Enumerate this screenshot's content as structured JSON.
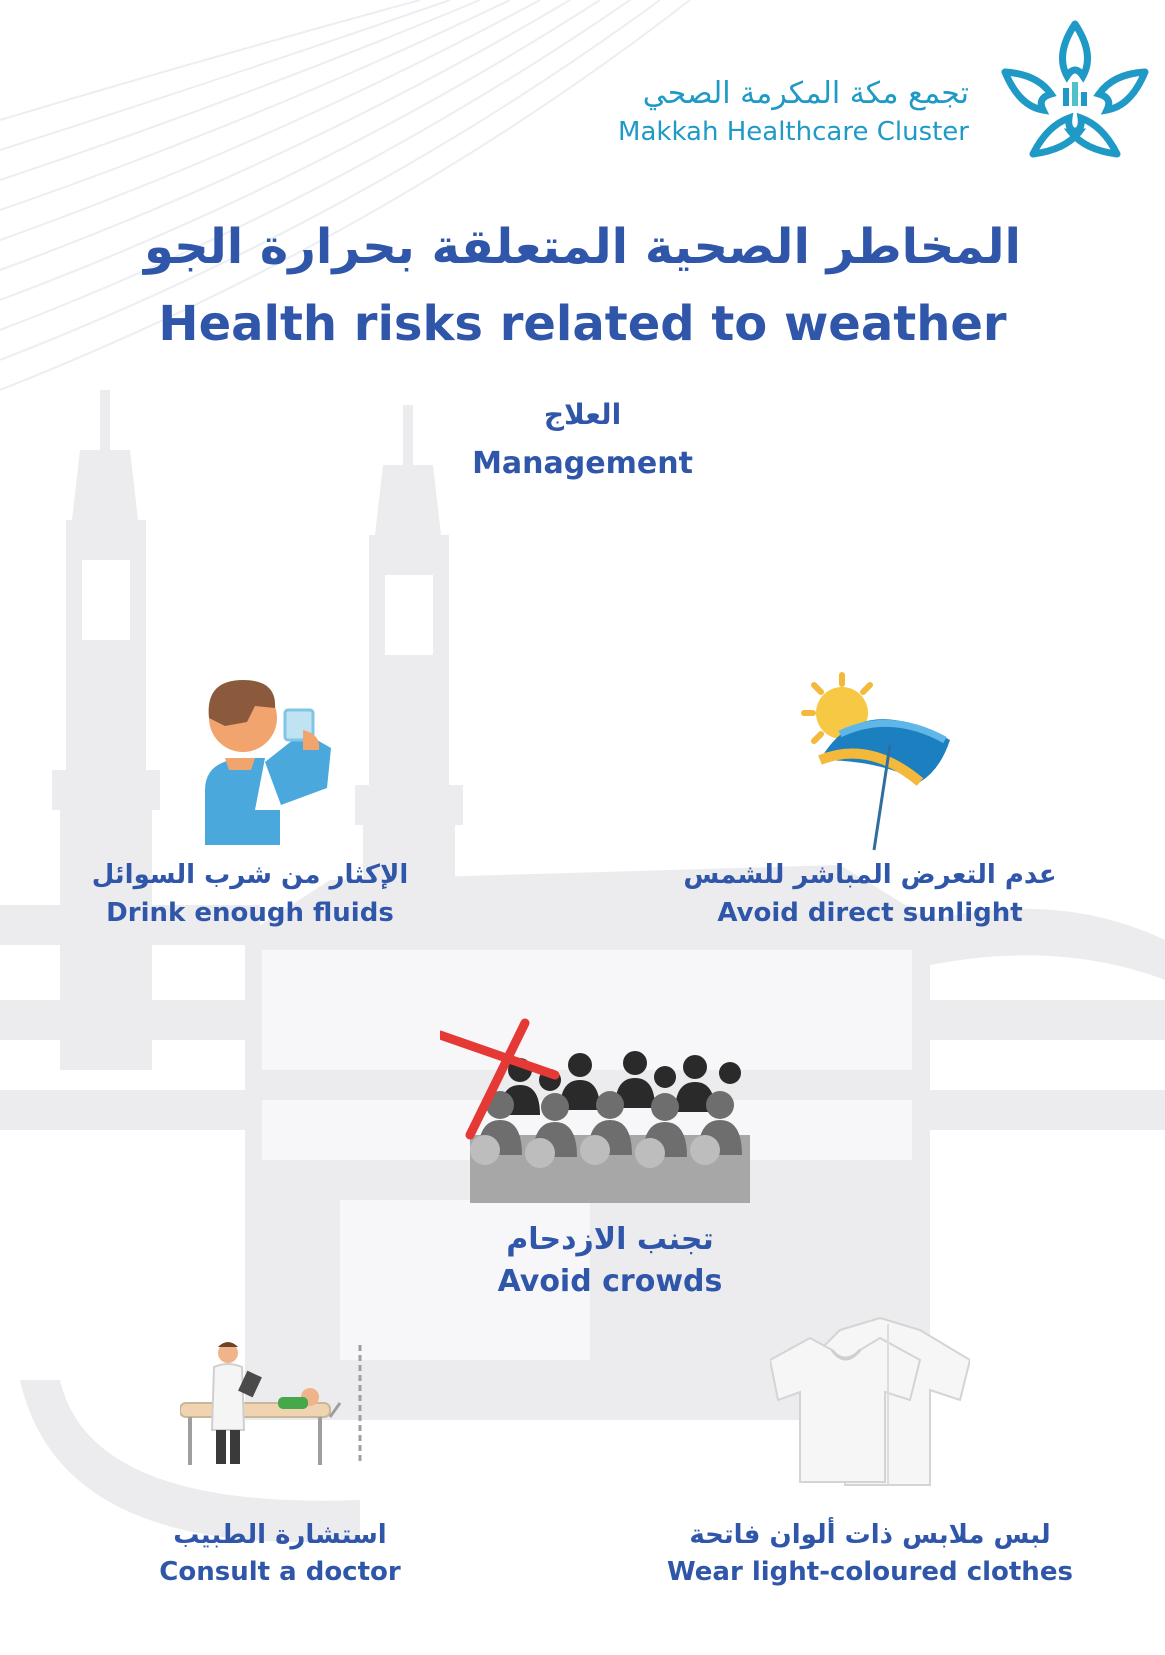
{
  "brand": {
    "name_ar": "تجمع مكة المكرمة الصحي",
    "name_en": "Makkah Healthcare Cluster"
  },
  "title": {
    "ar": "المخاطر الصحية المتعلقة بحرارة الجو",
    "en": "Health risks related to weather"
  },
  "section": {
    "ar": "العلاج",
    "en": "Management"
  },
  "items": [
    {
      "ar": "الإكثار من شرب السوائل",
      "en": "Drink enough fluids",
      "icon": "drinking-water-icon"
    },
    {
      "ar": "عدم التعرض المباشر للشمس",
      "en": "Avoid direct sunlight",
      "icon": "umbrella-sun-icon"
    },
    {
      "ar": "تجنب الازدحام",
      "en": "Avoid crowds",
      "icon": "crowd-crossed-icon"
    },
    {
      "ar": "استشارة الطبيب",
      "en": "Consult a doctor",
      "icon": "doctor-patient-icon"
    },
    {
      "ar": "لبس ملابس ذات ألوان فاتحة",
      "en": "Wear light-coloured clothes",
      "icon": "white-shirts-icon"
    }
  ],
  "colors": {
    "primary_text": "#2f56a8",
    "brand_teal": "#1f9ac6",
    "background_art": "#e9e9ec"
  }
}
